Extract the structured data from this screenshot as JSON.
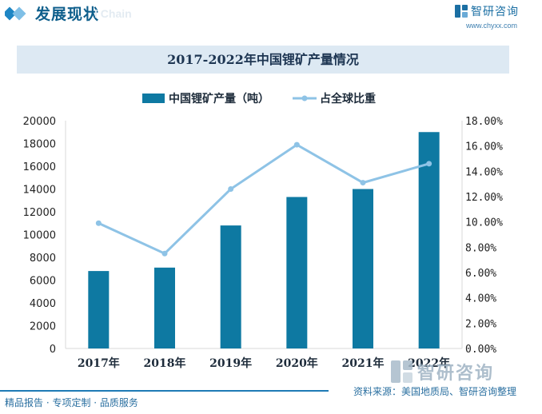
{
  "header": {
    "title": "发展现状",
    "ghost_text": "l Chain",
    "brand_name": "智研咨询",
    "brand_url": "www.chyxx.com"
  },
  "chart_data": {
    "type": "bar",
    "title": "2017-2022年中国锂矿产量情况",
    "categories": [
      "2017年",
      "2018年",
      "2019年",
      "2020年",
      "2021年",
      "2022年"
    ],
    "series": [
      {
        "name": "中国锂矿产量（吨）",
        "type": "bar",
        "axis": "left",
        "values": [
          6800,
          7100,
          10800,
          13300,
          14000,
          19000
        ]
      },
      {
        "name": "占全球比重",
        "type": "line",
        "axis": "right",
        "unit": "%",
        "values": [
          9.9,
          7.5,
          12.6,
          16.1,
          13.1,
          14.6
        ]
      }
    ],
    "y_left": {
      "min": 0,
      "max": 20000,
      "ticks": [
        "0",
        "2000",
        "4000",
        "6000",
        "8000",
        "10000",
        "12000",
        "14000",
        "16000",
        "18000",
        "20000"
      ]
    },
    "y_right": {
      "min": 0,
      "max": 18,
      "ticks": [
        "0.00%",
        "2.00%",
        "4.00%",
        "6.00%",
        "8.00%",
        "10.00%",
        "12.00%",
        "14.00%",
        "16.00%",
        "18.00%"
      ]
    },
    "colors": {
      "bar": "#0e79a2",
      "line": "#8ec3e6",
      "title_bg": "#dde9f3"
    }
  },
  "footer": {
    "left_text": "精品报告 · 专项定制 · 品质服务",
    "source_text": "资料来源：美国地质局、智研咨询整理",
    "watermark_text": "智研咨询"
  }
}
